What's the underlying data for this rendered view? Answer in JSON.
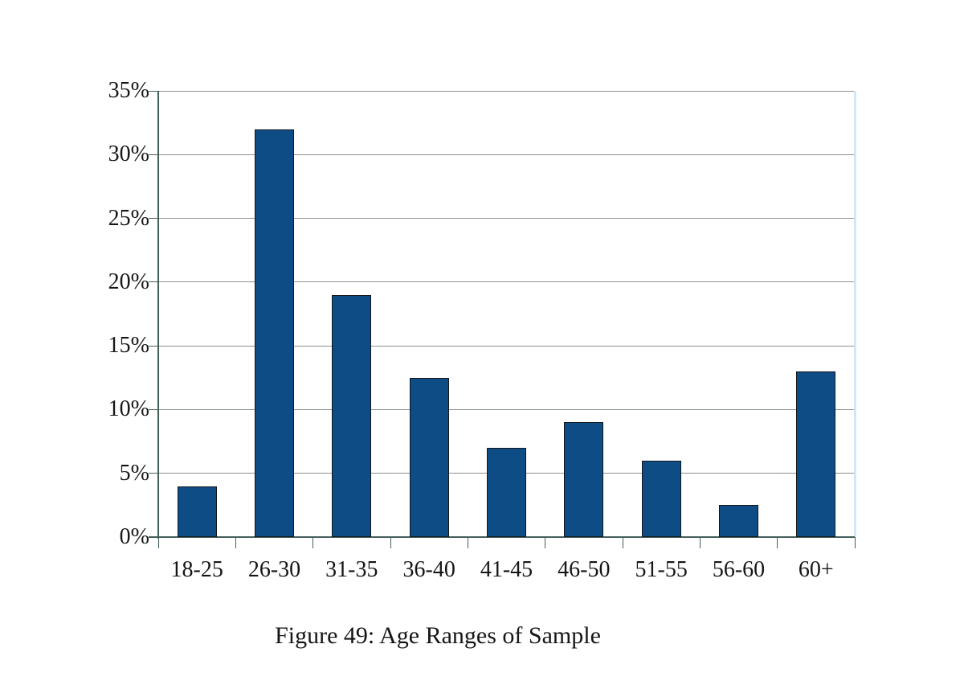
{
  "figure": {
    "caption": "Figure 49: Age Ranges of Sample"
  },
  "chart_data": {
    "type": "bar",
    "title": "",
    "xlabel": "",
    "ylabel": "",
    "categories": [
      "18-25",
      "26-30",
      "31-35",
      "36-40",
      "41-45",
      "46-50",
      "51-55",
      "56-60",
      "60+"
    ],
    "values": [
      4,
      32,
      19,
      12.5,
      7,
      9,
      6,
      2.5,
      13
    ],
    "y_tick_labels": [
      "0%",
      "5%",
      "10%",
      "15%",
      "20%",
      "25%",
      "30%",
      "35%"
    ],
    "y_tick_step": 5,
    "ylim": [
      0,
      35
    ],
    "grid": "horizontal-only",
    "legend": "none",
    "colors": {
      "bar_fill": "#0d4c84",
      "bar_border": "#15171c",
      "grid_line": "#8a938e",
      "axis_line": "#44605a",
      "plot_right_border": "#cfe8f7",
      "text": "#161616",
      "background": "#ffffff"
    }
  }
}
